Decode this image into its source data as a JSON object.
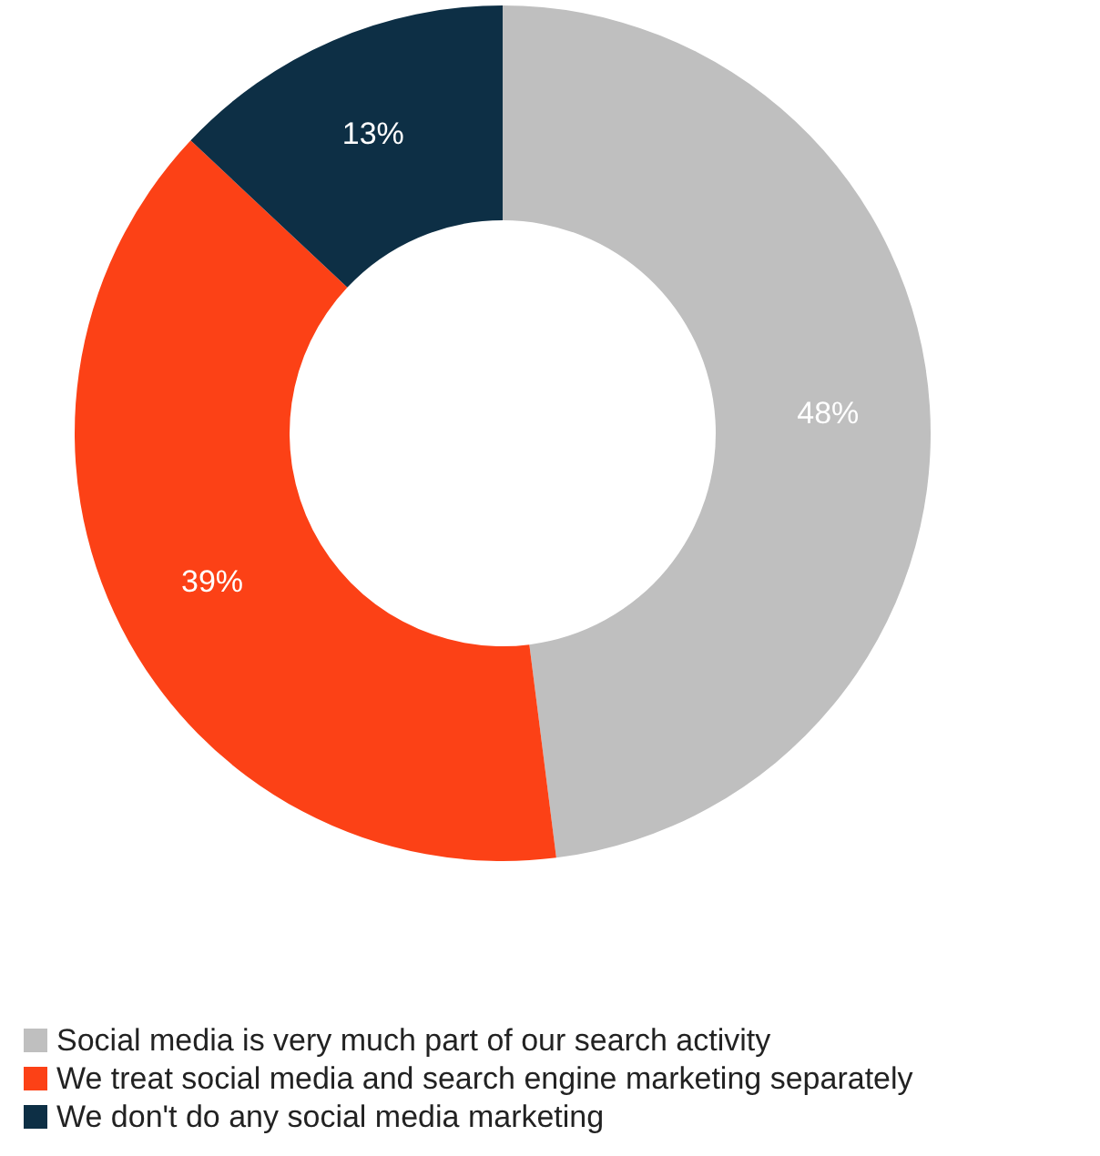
{
  "chart_data": {
    "type": "donut",
    "categories": [
      "Social media is very much part of our search activity",
      "We treat social media and search engine marketing separately",
      "We don't do any social media marketing"
    ],
    "values": [
      48,
      39,
      13
    ],
    "value_labels": [
      "48%",
      "39%",
      "13%"
    ],
    "colors": [
      "#bfbfbf",
      "#fc4116",
      "#0d2f45"
    ],
    "legend": "bottom"
  }
}
